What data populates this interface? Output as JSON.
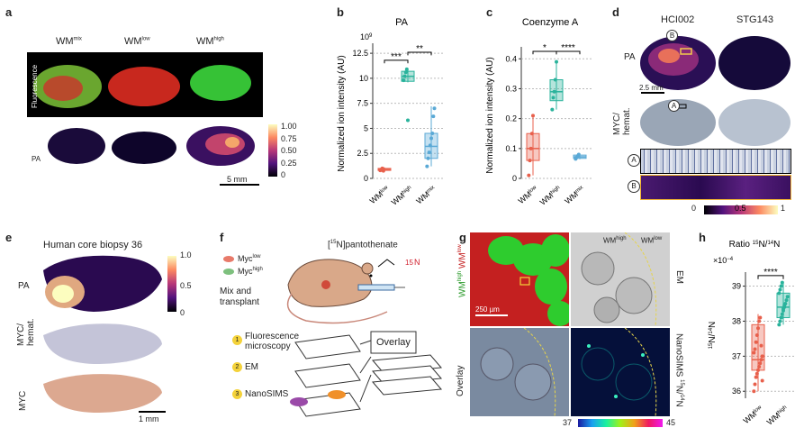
{
  "panels": {
    "a": {
      "label": "a",
      "columns": [
        "WM",
        "WM",
        "WM"
      ],
      "column_sups": [
        "mix",
        "low",
        "high"
      ],
      "row_fluo": "Fluorescence",
      "row_pa": "PA",
      "scale_bar": "5 mm",
      "colorbar_ticks": [
        "1.00",
        "0.75",
        "0.50",
        "0.25",
        "0"
      ]
    },
    "b": {
      "label": "b",
      "title": "PA",
      "ylabel": "Normalized ion intensity (AU)",
      "exponent": "10",
      "exponent_sup": "9",
      "sig": [
        "***",
        "**"
      ]
    },
    "c": {
      "label": "c",
      "title": "Coenzyme A",
      "ylabel": "Normalized ion intensity (AU)",
      "sig": [
        "*",
        "****"
      ]
    },
    "d": {
      "label": "d",
      "samples": [
        "HCI002",
        "STG143"
      ],
      "row_pa": "PA",
      "row_myc": "MYC/\nhemat.",
      "scale_bar": "2.5 mm",
      "callouts": [
        "A",
        "B"
      ],
      "colorbar_ticks": [
        "0",
        "0.5",
        "1"
      ]
    },
    "e": {
      "label": "e",
      "title": "Human core biopsy 36",
      "rows": [
        "PA",
        "MYC/\nhemat.",
        "MYC"
      ],
      "scale_bar": "1 mm",
      "colorbar_ticks": [
        "1.0",
        "0.5",
        "0"
      ]
    },
    "f": {
      "label": "f",
      "myc_low": "Myc",
      "myc_low_sup": "low",
      "myc_high": "Myc",
      "myc_high_sup": "high",
      "label_15n": "[",
      "label_15n_sup": "15",
      "label_15n_rest": "N]pantothenate",
      "mix": "Mix and\ntransplant",
      "steps": [
        "Fluorescence\nmicroscopy",
        "EM",
        "NanoSIMS"
      ],
      "step_nums": [
        "1",
        "2",
        "3"
      ],
      "overlay": "Overlay"
    },
    "g": {
      "label": "g",
      "scale_bar": "250 µm",
      "em": "EM",
      "overlay": "Overlay",
      "nanosims": "NanoSIMS",
      "ratio_label": "N/",
      "wm_high": "WM",
      "wm_low": "WM",
      "colorbar_ticks": [
        "37",
        "45"
      ]
    },
    "h": {
      "label": "h",
      "title": "Ratio ",
      "title_sup1": "15",
      "title_mid": "N/",
      "title_sup2": "14",
      "title_end": "N",
      "exponent": "×10",
      "exponent_sup": "−4",
      "ylabel": "N/",
      "sig": "****"
    }
  },
  "chart_data": [
    {
      "type": "box",
      "panel": "b",
      "title": "PA",
      "ylabel": "Normalized ion intensity (AU)",
      "categories": [
        "WM low",
        "WM high",
        "WM mix"
      ],
      "yticks": [
        0,
        2.5,
        5,
        7.5,
        10,
        12.5
      ],
      "ylim": [
        0,
        13.5
      ],
      "colors": [
        "#e8604c",
        "#2ab39c",
        "#5aa9d6"
      ],
      "boxes": [
        {
          "q1": 0.8,
          "median": 0.9,
          "q3": 1.0,
          "min": 0.7,
          "max": 1.1
        },
        {
          "q1": 9.7,
          "median": 10.2,
          "q3": 10.7,
          "min": 9.6,
          "max": 11.0
        },
        {
          "q1": 2.0,
          "median": 3.2,
          "q3": 4.5,
          "min": 1.2,
          "max": 7.2
        }
      ],
      "points": [
        [
          0.8,
          0.9,
          1.0,
          0.75
        ],
        [
          9.8,
          10.2,
          10.6,
          10.9,
          5.8
        ],
        [
          1.2,
          2.0,
          2.6,
          3.3,
          4.0,
          4.5,
          6.2,
          7.0
        ]
      ]
    },
    {
      "type": "box",
      "panel": "c",
      "title": "Coenzyme A",
      "ylabel": "Normalized ion intensity (AU)",
      "categories": [
        "WM low",
        "WM high",
        "WM mix"
      ],
      "yticks": [
        0,
        0.1,
        0.2,
        0.3,
        0.4
      ],
      "ylim": [
        0,
        0.44
      ],
      "colors": [
        "#e8604c",
        "#2ab39c",
        "#5aa9d6"
      ],
      "boxes": [
        {
          "q1": 0.06,
          "median": 0.1,
          "q3": 0.15,
          "min": 0.01,
          "max": 0.21
        },
        {
          "q1": 0.26,
          "median": 0.29,
          "q3": 0.33,
          "min": 0.23,
          "max": 0.39
        },
        {
          "q1": 0.067,
          "median": 0.072,
          "q3": 0.078,
          "min": 0.064,
          "max": 0.082
        }
      ],
      "points": [
        [
          0.01,
          0.06,
          0.1,
          0.15,
          0.21
        ],
        [
          0.23,
          0.27,
          0.29,
          0.33,
          0.39
        ],
        [
          0.065,
          0.07,
          0.075,
          0.08
        ]
      ]
    },
    {
      "type": "box",
      "panel": "h",
      "title": "Ratio 15N/14N",
      "ylabel": "15N/14N",
      "categories": [
        "WM low",
        "WM high"
      ],
      "yticks": [
        36,
        37,
        38,
        39
      ],
      "ylim": [
        35.8,
        39.4
      ],
      "colors": [
        "#e8604c",
        "#2ab39c"
      ],
      "boxes": [
        {
          "q1": 36.6,
          "median": 36.9,
          "q3": 37.9,
          "min": 36.0,
          "max": 38.2
        },
        {
          "q1": 38.1,
          "median": 38.4,
          "q3": 38.8,
          "min": 37.9,
          "max": 39.1
        }
      ],
      "points": [
        [
          36.0,
          36.2,
          36.4,
          36.5,
          36.6,
          36.7,
          36.8,
          36.9,
          37.0,
          37.1,
          37.2,
          37.4,
          37.6,
          37.8,
          38.0,
          38.1,
          37.3,
          36.3
        ],
        [
          37.9,
          38.0,
          38.1,
          38.2,
          38.3,
          38.4,
          38.5,
          38.6,
          38.7,
          38.8,
          38.9,
          39.0,
          39.1,
          38.35,
          38.45
        ]
      ]
    }
  ]
}
